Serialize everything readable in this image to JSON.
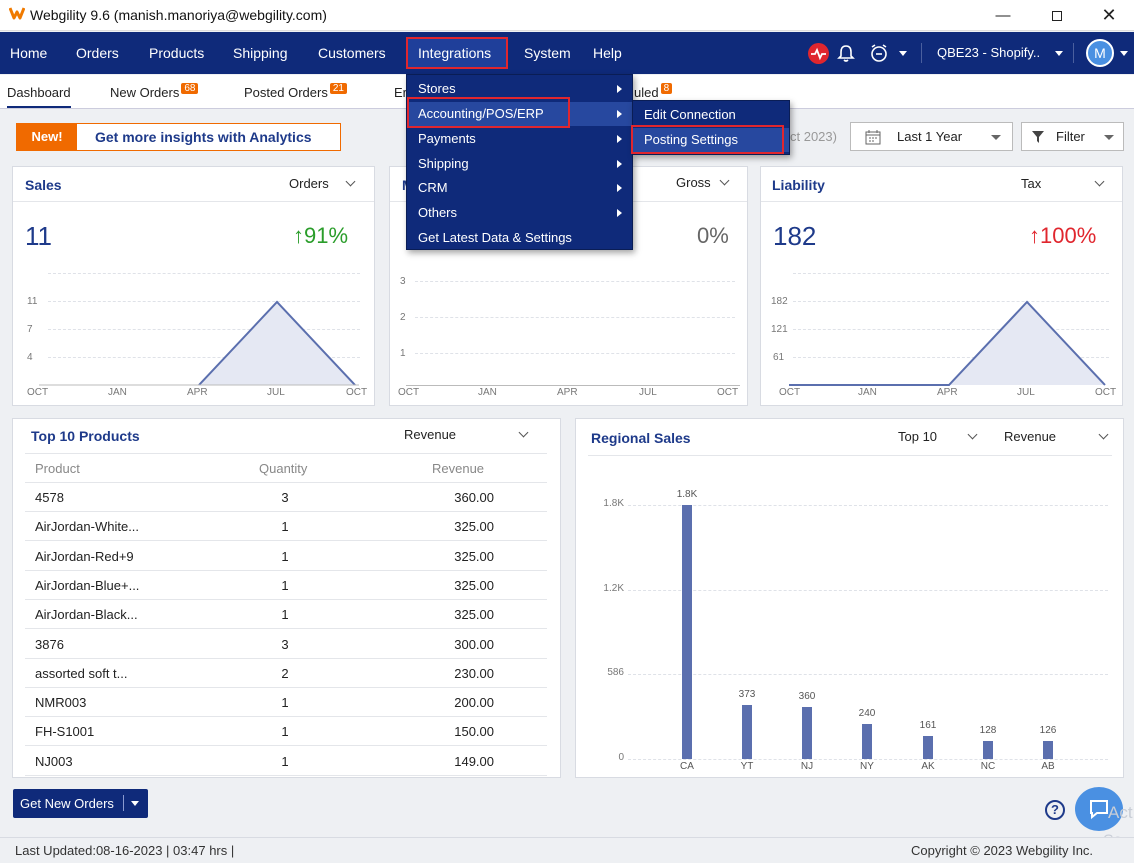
{
  "window": {
    "title": "Webgility 9.6 (manish.manoriya@webgility.com)"
  },
  "nav": {
    "items": [
      "Home",
      "Orders",
      "Products",
      "Shipping",
      "Customers",
      "Integrations",
      "System",
      "Help"
    ],
    "store_selector": "QBE23 - Shopify..",
    "avatar": "M"
  },
  "tabs": {
    "dashboard": "Dashboard",
    "new_orders": "New Orders",
    "new_orders_badge": "68",
    "posted_orders": "Posted Orders",
    "posted_orders_badge": "21",
    "err_partial": "Er",
    "scheduled_partial": "uled",
    "scheduled_badge": "8"
  },
  "promo": {
    "new": "New!",
    "text": "Get more insights with Analytics"
  },
  "toolbar": {
    "date_partial": "ct 2023)",
    "range": "Last 1 Year",
    "filter": "Filter"
  },
  "menus": {
    "integrations": [
      "Stores",
      "Accounting/POS/ERP",
      "Payments",
      "Shipping",
      "CRM",
      "Others",
      "Get Latest Data & Settings"
    ],
    "accounting_sub": [
      "Edit Connection",
      "Posting Settings"
    ]
  },
  "sales_card": {
    "title": "Sales",
    "dropdown": "Orders",
    "value": "11",
    "change": "↑91%",
    "y_ticks": [
      "11",
      "7",
      "4"
    ],
    "x_ticks": [
      "OCT",
      "JAN",
      "APR",
      "JUL",
      "OCT"
    ]
  },
  "margin_card": {
    "title_partial": "M",
    "dropdown": "Gross",
    "change": "0%",
    "y_ticks": [
      "3",
      "2",
      "1"
    ],
    "x_ticks": [
      "OCT",
      "JAN",
      "APR",
      "JUL",
      "OCT"
    ]
  },
  "liability_card": {
    "title": "Liability",
    "dropdown": "Tax",
    "value": "182",
    "change": "↑100%",
    "y_ticks": [
      "182",
      "121",
      "61"
    ],
    "x_ticks": [
      "OCT",
      "JAN",
      "APR",
      "JUL",
      "OCT"
    ]
  },
  "products": {
    "title": "Top 10 Products",
    "dropdown": "Revenue",
    "headers": [
      "Product",
      "Quantity",
      "Revenue"
    ],
    "rows": [
      [
        "4578",
        "3",
        "360.00"
      ],
      [
        "AirJordan-White...",
        "1",
        "325.00"
      ],
      [
        "AirJordan-Red+9",
        "1",
        "325.00"
      ],
      [
        "AirJordan-Blue+...",
        "1",
        "325.00"
      ],
      [
        "AirJordan-Black...",
        "1",
        "325.00"
      ],
      [
        "3876",
        "3",
        "300.00"
      ],
      [
        "assorted soft t...",
        "2",
        "230.00"
      ],
      [
        "NMR003",
        "1",
        "200.00"
      ],
      [
        "FH-S1001",
        "1",
        "150.00"
      ],
      [
        "NJ003",
        "1",
        "149.00"
      ]
    ]
  },
  "regional": {
    "title": "Regional Sales",
    "dropdown1": "Top 10",
    "dropdown2": "Revenue"
  },
  "chart_data": {
    "type": "bar",
    "categories": [
      "CA",
      "YT",
      "NJ",
      "NY",
      "AK",
      "NC",
      "AB"
    ],
    "values": [
      1760,
      373,
      360,
      240,
      161,
      128,
      126
    ],
    "value_labels": [
      "1.8K",
      "373",
      "360",
      "240",
      "161",
      "128",
      "126"
    ],
    "y_ticks": [
      "0",
      "586",
      "1.2K",
      "1.8K"
    ],
    "ylim": [
      0,
      1760
    ]
  },
  "footer": {
    "button": "Get New Orders",
    "last_updated": "Last Updated:08-16-2023 | 03:47 hrs |",
    "copyright": "Copyright © 2023 Webgility Inc.",
    "help": "?",
    "watermark_line1": "Act",
    "watermark_line2": "Go to"
  },
  "colors": {
    "nav": "#0f2a7a",
    "accent": "#f06a00",
    "positive": "#2a9d2a",
    "negative": "#e0262e",
    "highlight": "#e0262e"
  }
}
